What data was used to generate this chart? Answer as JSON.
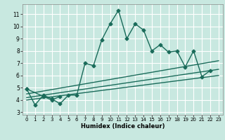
{
  "xlabel": "Humidex (Indice chaleur)",
  "ylabel": "",
  "bg_color": "#c8e8e0",
  "grid_color": "#ffffff",
  "line_color": "#1a6b5a",
  "xlim": [
    -0.5,
    23.5
  ],
  "ylim": [
    2.8,
    11.8
  ],
  "yticks": [
    3,
    4,
    5,
    6,
    7,
    8,
    9,
    10,
    11
  ],
  "xticks": [
    0,
    1,
    2,
    3,
    4,
    5,
    6,
    7,
    8,
    9,
    10,
    11,
    12,
    13,
    14,
    15,
    16,
    17,
    18,
    19,
    20,
    21,
    22,
    23
  ],
  "series": [
    {
      "x": [
        0,
        1,
        2,
        3,
        4,
        5,
        6,
        7,
        8,
        9,
        10,
        11,
        12,
        13,
        14,
        15,
        16,
        17,
        18,
        19,
        20,
        21,
        22
      ],
      "y": [
        4.9,
        3.6,
        4.4,
        4.1,
        3.7,
        4.4,
        4.4,
        7.0,
        6.8,
        8.9,
        10.2,
        11.3,
        9.0,
        10.2,
        9.7,
        8.0,
        8.5,
        7.9,
        8.0,
        6.7,
        8.0,
        5.9,
        6.4
      ],
      "marker": "D",
      "markersize": 2.5,
      "linewidth": 1.0
    },
    {
      "segments": [
        {
          "x": [
            0,
            2,
            3,
            4
          ],
          "y": [
            4.9,
            4.3,
            4.0,
            4.3
          ]
        }
      ],
      "marker": "D",
      "markersize": 2.5,
      "linewidth": 1.0
    },
    {
      "x": [
        0,
        23
      ],
      "y": [
        4.5,
        7.2
      ],
      "marker": null,
      "markersize": 0,
      "linewidth": 1.0
    },
    {
      "x": [
        0,
        23
      ],
      "y": [
        4.2,
        6.5
      ],
      "marker": null,
      "markersize": 0,
      "linewidth": 1.0
    },
    {
      "x": [
        0,
        23
      ],
      "y": [
        4.0,
        6.0
      ],
      "marker": null,
      "markersize": 0,
      "linewidth": 1.0
    }
  ]
}
